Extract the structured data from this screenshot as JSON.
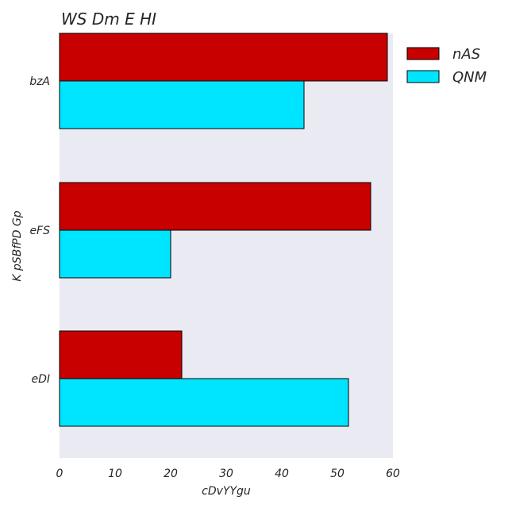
{
  "chart_data": {
    "type": "bar",
    "orientation": "horizontal",
    "title": "WS  Dm E HI",
    "xlabel": "cDvYYgu",
    "ylabel": "K pSBfPD Gp",
    "categories": [
      "bzA",
      "eFS",
      "eDI"
    ],
    "series": [
      {
        "name": "nAS",
        "color": "#c80000",
        "values": [
          59,
          56,
          22
        ]
      },
      {
        "name": "QNM",
        "color": "#00e5ff",
        "values": [
          44,
          20,
          52
        ]
      }
    ],
    "xlim": [
      0,
      60
    ],
    "xticks": [
      0,
      10,
      20,
      30,
      40,
      50,
      60
    ],
    "grid": false,
    "legend_position": "top-right",
    "plot_background": "#eaeaf2"
  }
}
